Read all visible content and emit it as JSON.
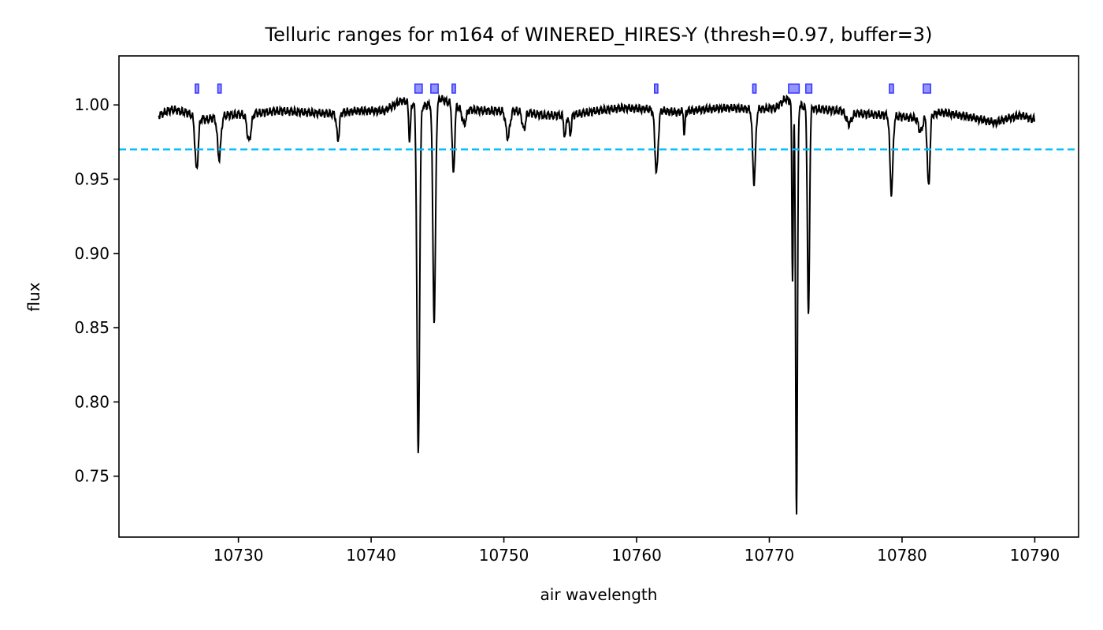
{
  "chart_data": {
    "type": "line",
    "title": "Telluric ranges for m164 of WINERED_HIRES-Y (thresh=0.97, buffer=3)",
    "xlabel": "air wavelength",
    "ylabel": "flux",
    "xlim": [
      10721.0,
      10793.3
    ],
    "ylim": [
      0.709,
      1.033
    ],
    "xticks": [
      10730,
      10740,
      10750,
      10760,
      10770,
      10780,
      10790
    ],
    "yticks": [
      0.75,
      0.8,
      0.85,
      0.9,
      0.95,
      1.0
    ],
    "grid": false,
    "threshold": {
      "value": 0.97,
      "color": "#00bfff",
      "style": "dashed"
    },
    "spectrum_color": "#000000",
    "continuum": [
      [
        10724.0,
        0.993
      ],
      [
        10725.0,
        0.997
      ],
      [
        10726.0,
        0.995
      ],
      [
        10727.5,
        0.99
      ],
      [
        10729.0,
        0.993
      ],
      [
        10731.0,
        0.994
      ],
      [
        10733.0,
        0.996
      ],
      [
        10735.0,
        0.995
      ],
      [
        10737.0,
        0.994
      ],
      [
        10739.0,
        0.996
      ],
      [
        10741.0,
        0.996
      ],
      [
        10742.3,
        1.003
      ],
      [
        10744.0,
        0.999
      ],
      [
        10745.3,
        1.004
      ],
      [
        10747.0,
        0.997
      ],
      [
        10749.0,
        0.996
      ],
      [
        10751.0,
        0.996
      ],
      [
        10753.0,
        0.993
      ],
      [
        10755.0,
        0.993
      ],
      [
        10757.0,
        0.996
      ],
      [
        10759.0,
        0.998
      ],
      [
        10761.0,
        0.997
      ],
      [
        10763.0,
        0.995
      ],
      [
        10765.0,
        0.997
      ],
      [
        10767.0,
        0.998
      ],
      [
        10769.0,
        0.997
      ],
      [
        10770.5,
        0.998
      ],
      [
        10771.2,
        1.004
      ],
      [
        10772.8,
        0.998
      ],
      [
        10774.0,
        0.997
      ],
      [
        10775.5,
        0.996
      ],
      [
        10777.0,
        0.994
      ],
      [
        10779.0,
        0.993
      ],
      [
        10781.0,
        0.991
      ],
      [
        10783.0,
        0.995
      ],
      [
        10785.0,
        0.992
      ],
      [
        10787.0,
        0.988
      ],
      [
        10788.0,
        0.991
      ],
      [
        10789.0,
        0.993
      ],
      [
        10790.0,
        0.99
      ]
    ],
    "absorption_lines": [
      {
        "center": 10726.85,
        "depth": 0.036,
        "width": 0.12
      },
      {
        "center": 10728.55,
        "depth": 0.028,
        "width": 0.13
      },
      {
        "center": 10730.8,
        "depth": 0.018,
        "width": 0.15
      },
      {
        "center": 10737.5,
        "depth": 0.018,
        "width": 0.1
      },
      {
        "center": 10742.9,
        "depth": 0.025,
        "width": 0.07
      },
      {
        "center": 10743.55,
        "depth": 0.235,
        "width": 0.1
      },
      {
        "center": 10744.75,
        "depth": 0.147,
        "width": 0.1
      },
      {
        "center": 10746.2,
        "depth": 0.047,
        "width": 0.09
      },
      {
        "center": 10747.0,
        "depth": 0.01,
        "width": 0.15
      },
      {
        "center": 10750.3,
        "depth": 0.018,
        "width": 0.15
      },
      {
        "center": 10751.5,
        "depth": 0.012,
        "width": 0.12
      },
      {
        "center": 10754.6,
        "depth": 0.015,
        "width": 0.08
      },
      {
        "center": 10755.0,
        "depth": 0.013,
        "width": 0.08
      },
      {
        "center": 10761.5,
        "depth": 0.042,
        "width": 0.12
      },
      {
        "center": 10763.6,
        "depth": 0.016,
        "width": 0.05
      },
      {
        "center": 10768.85,
        "depth": 0.049,
        "width": 0.11
      },
      {
        "center": 10771.75,
        "depth": 0.12,
        "width": 0.05
      },
      {
        "center": 10772.05,
        "depth": 0.275,
        "width": 0.07
      },
      {
        "center": 10772.95,
        "depth": 0.141,
        "width": 0.08
      },
      {
        "center": 10776.0,
        "depth": 0.008,
        "width": 0.2
      },
      {
        "center": 10779.2,
        "depth": 0.052,
        "width": 0.11
      },
      {
        "center": 10781.4,
        "depth": 0.01,
        "width": 0.15
      },
      {
        "center": 10782.0,
        "depth": 0.048,
        "width": 0.1
      }
    ],
    "telluric_ranges": [
      {
        "start": 10726.75,
        "end": 10727.0
      },
      {
        "start": 10728.45,
        "end": 10728.7
      },
      {
        "start": 10743.3,
        "end": 10743.85
      },
      {
        "start": 10744.5,
        "end": 10745.05
      },
      {
        "start": 10746.1,
        "end": 10746.35
      },
      {
        "start": 10761.35,
        "end": 10761.6
      },
      {
        "start": 10768.75,
        "end": 10769.0
      },
      {
        "start": 10771.45,
        "end": 10772.25
      },
      {
        "start": 10772.75,
        "end": 10773.2
      },
      {
        "start": 10779.05,
        "end": 10779.35
      },
      {
        "start": 10781.6,
        "end": 10782.15
      }
    ],
    "telluric_marker_level": [
      1.008,
      1.014
    ],
    "telluric_color": "#6666ff"
  }
}
